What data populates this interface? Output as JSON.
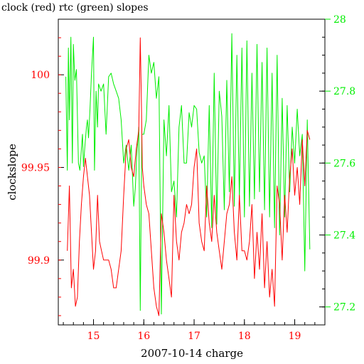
{
  "chart_data": {
    "type": "line",
    "title": "clock (red) rtc (green) slopes",
    "xlabel": "2007-10-14 charge",
    "ylabel": "clockslope",
    "xlim": [
      14.3,
      19.6
    ],
    "ylim": [
      99.865,
      100.03
    ],
    "y2lim": [
      27.15,
      28.0
    ],
    "grid": false,
    "colors": {
      "left_axis": "#ff0000",
      "right_axis": "#00ee00",
      "frame": "#000000"
    },
    "x_ticks": [
      "15",
      "16",
      "17",
      "18",
      "19"
    ],
    "y_ticks": [
      "99.9",
      "99.95",
      "100"
    ],
    "y2_ticks": [
      "27.2",
      "27.4",
      "27.6",
      "27.8",
      "28"
    ],
    "series": [
      {
        "name": "clock",
        "axis": "left",
        "color": "#ff0000",
        "x": [
          14.48,
          14.52,
          14.56,
          14.6,
          14.64,
          14.68,
          14.72,
          14.76,
          14.8,
          14.84,
          14.88,
          14.92,
          14.96,
          15.0,
          15.04,
          15.08,
          15.12,
          15.16,
          15.2,
          15.25,
          15.3,
          15.35,
          15.4,
          15.45,
          15.5,
          15.55,
          15.6,
          15.65,
          15.7,
          15.75,
          15.8,
          15.85,
          15.9,
          15.93,
          15.95,
          15.97,
          16.0,
          16.05,
          16.1,
          16.15,
          16.2,
          16.25,
          16.3,
          16.35,
          16.4,
          16.45,
          16.5,
          16.55,
          16.6,
          16.65,
          16.7,
          16.75,
          16.8,
          16.85,
          16.9,
          16.95,
          17.0,
          17.05,
          17.1,
          17.15,
          17.2,
          17.25,
          17.3,
          17.35,
          17.4,
          17.45,
          17.5,
          17.55,
          17.6,
          17.65,
          17.7,
          17.75,
          17.8,
          17.85,
          17.9,
          17.95,
          18.0,
          18.05,
          18.1,
          18.15,
          18.2,
          18.25,
          18.3,
          18.35,
          18.4,
          18.45,
          18.5,
          18.55,
          18.6,
          18.65,
          18.7,
          18.75,
          18.8,
          18.85,
          18.9,
          18.95,
          19.0,
          19.05,
          19.1,
          19.15,
          19.2,
          19.25,
          19.3
        ],
        "values": [
          99.905,
          99.94,
          99.885,
          99.895,
          99.875,
          99.88,
          99.91,
          99.93,
          99.945,
          99.955,
          99.945,
          99.935,
          99.915,
          99.895,
          99.905,
          99.935,
          99.91,
          99.905,
          99.9,
          99.9,
          99.9,
          99.895,
          99.885,
          99.885,
          99.895,
          99.905,
          99.935,
          99.96,
          99.965,
          99.95,
          99.945,
          99.96,
          99.97,
          100.02,
          99.99,
          99.95,
          99.94,
          99.93,
          99.925,
          99.905,
          99.885,
          99.875,
          99.87,
          99.925,
          99.915,
          99.9,
          99.89,
          99.88,
          99.935,
          99.91,
          99.9,
          99.915,
          99.92,
          99.93,
          99.925,
          99.93,
          99.95,
          99.96,
          99.92,
          99.91,
          99.905,
          99.94,
          99.92,
          99.91,
          99.935,
          99.915,
          99.905,
          99.895,
          99.91,
          99.925,
          99.93,
          99.945,
          99.915,
          99.9,
          99.935,
          99.905,
          99.905,
          99.9,
          99.91,
          99.93,
          99.89,
          99.915,
          99.895,
          99.925,
          99.885,
          99.91,
          99.88,
          99.895,
          99.875,
          99.94,
          99.93,
          99.9,
          99.935,
          99.915,
          99.945,
          99.96,
          99.935,
          99.95,
          99.93,
          99.965,
          99.94,
          99.97,
          99.965
        ]
      },
      {
        "name": "rtc",
        "axis": "right",
        "color": "#00ee00",
        "x": [
          14.45,
          14.48,
          14.5,
          14.52,
          14.55,
          14.58,
          14.6,
          14.63,
          14.66,
          14.68,
          14.7,
          14.73,
          14.76,
          14.78,
          14.8,
          14.83,
          14.86,
          14.88,
          14.9,
          14.93,
          14.96,
          15.0,
          15.02,
          15.05,
          15.08,
          15.1,
          15.15,
          15.2,
          15.25,
          15.3,
          15.35,
          15.4,
          15.45,
          15.5,
          15.55,
          15.6,
          15.65,
          15.7,
          15.75,
          15.8,
          15.83,
          15.86,
          15.9,
          15.93,
          15.96,
          16.0,
          16.05,
          16.1,
          16.15,
          16.2,
          16.25,
          16.3,
          16.35,
          16.4,
          16.45,
          16.5,
          16.55,
          16.6,
          16.65,
          16.7,
          16.75,
          16.8,
          16.85,
          16.9,
          16.95,
          17.0,
          17.05,
          17.1,
          17.15,
          17.2,
          17.25,
          17.3,
          17.35,
          17.4,
          17.45,
          17.5,
          17.55,
          17.6,
          17.65,
          17.7,
          17.75,
          17.8,
          17.85,
          17.9,
          17.95,
          18.0,
          18.05,
          18.1,
          18.15,
          18.2,
          18.25,
          18.3,
          18.35,
          18.4,
          18.45,
          18.5,
          18.55,
          18.6,
          18.65,
          18.7,
          18.75,
          18.8,
          18.85,
          18.9,
          18.95,
          19.0,
          19.05,
          19.1,
          19.15,
          19.2,
          19.25,
          19.3
        ],
        "values": [
          27.84,
          27.58,
          27.92,
          27.72,
          27.95,
          27.6,
          27.93,
          27.83,
          27.86,
          27.73,
          27.6,
          27.58,
          27.64,
          27.68,
          27.59,
          27.65,
          27.7,
          27.72,
          27.67,
          27.75,
          27.85,
          27.95,
          27.58,
          27.8,
          27.7,
          27.82,
          27.8,
          27.82,
          27.68,
          27.84,
          27.85,
          27.82,
          27.8,
          27.78,
          27.72,
          27.6,
          27.65,
          27.58,
          27.65,
          27.48,
          27.53,
          27.62,
          27.7,
          27.19,
          27.68,
          27.68,
          27.72,
          27.9,
          27.85,
          27.88,
          27.78,
          27.84,
          27.18,
          27.72,
          27.62,
          27.76,
          27.52,
          27.55,
          27.45,
          27.7,
          27.76,
          27.6,
          27.6,
          27.74,
          27.7,
          27.76,
          27.75,
          27.63,
          27.6,
          27.62,
          27.45,
          27.76,
          27.42,
          27.85,
          27.43,
          27.8,
          27.73,
          27.47,
          27.83,
          27.52,
          27.96,
          27.48,
          27.9,
          27.5,
          27.92,
          27.45,
          27.94,
          27.48,
          27.85,
          27.5,
          27.93,
          27.52,
          27.88,
          27.47,
          27.92,
          27.45,
          27.85,
          27.42,
          27.9,
          27.4,
          27.78,
          27.45,
          27.76,
          27.52,
          27.7,
          27.6,
          27.75,
          27.62,
          27.68,
          27.3,
          27.72,
          27.36
        ]
      }
    ]
  }
}
